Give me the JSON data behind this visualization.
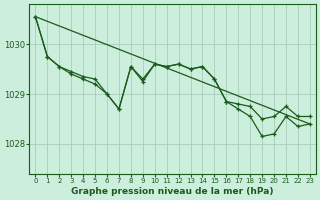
{
  "bg_color": "#cceedd",
  "grid_color": "#aaccbb",
  "line_color": "#1a5c1a",
  "xlabel": "Graphe pression niveau de la mer (hPa)",
  "xlim": [
    -0.5,
    23.5
  ],
  "ylim": [
    1027.4,
    1030.8
  ],
  "yticks": [
    1028,
    1029,
    1030
  ],
  "xticks": [
    0,
    1,
    2,
    3,
    4,
    5,
    6,
    7,
    8,
    9,
    10,
    11,
    12,
    13,
    14,
    15,
    16,
    17,
    18,
    19,
    20,
    21,
    22,
    23
  ],
  "series1_y": [
    1030.55,
    1029.75,
    1029.55,
    1029.45,
    1029.35,
    1029.3,
    1029.0,
    1028.7,
    1029.55,
    1029.3,
    1029.6,
    1029.55,
    1029.6,
    1029.5,
    1029.55,
    1029.3,
    1028.85,
    1028.8,
    1028.75,
    1028.5,
    1028.55,
    1028.75,
    1028.55,
    1028.55
  ],
  "series2_y": [
    1030.55,
    1029.75,
    1029.55,
    1029.4,
    1029.3,
    1029.2,
    1029.0,
    1028.7,
    1029.55,
    1029.25,
    1029.6,
    1029.55,
    1029.6,
    1029.5,
    1029.55,
    1029.3,
    1028.85,
    1028.7,
    1028.55,
    1028.15,
    1028.2,
    1028.55,
    1028.35,
    1028.4
  ],
  "trend_y": [
    1030.55,
    1028.4
  ]
}
